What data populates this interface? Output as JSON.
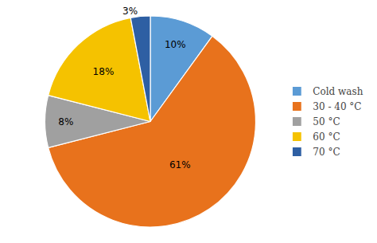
{
  "chart_data": {
    "type": "pie",
    "categories": [
      "Cold wash",
      "30 - 40 °C",
      "50 °C",
      "60 °C",
      "70 °C"
    ],
    "values": [
      10,
      61,
      8,
      18,
      3
    ],
    "value_labels": [
      "10%",
      "61%",
      "8%",
      "18%",
      "3%"
    ],
    "colors": [
      "#5B9BD5",
      "#E8721C",
      "#A0A0A0",
      "#F5C200",
      "#2E5FA3"
    ],
    "data_labels": true,
    "legend": "right"
  }
}
